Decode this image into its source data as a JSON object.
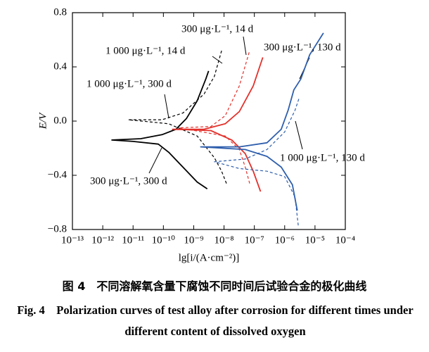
{
  "chart_data": {
    "type": "line",
    "xlabel": "lg[i/(A·cm⁻²)]",
    "ylabel": "E/V",
    "xlog": true,
    "xlim": [
      1e-13,
      0.0001
    ],
    "xticks": [
      {
        "value": 1e-13,
        "label": "10⁻¹³"
      },
      {
        "value": 1e-12,
        "label": "10⁻¹²"
      },
      {
        "value": 1e-11,
        "label": "10⁻¹¹"
      },
      {
        "value": 1e-10,
        "label": "10⁻¹⁰"
      },
      {
        "value": 1e-09,
        "label": "10⁻⁹"
      },
      {
        "value": 1e-08,
        "label": "10⁻⁸"
      },
      {
        "value": 1e-07,
        "label": "10⁻⁷"
      },
      {
        "value": 1e-06,
        "label": "10⁻⁶"
      },
      {
        "value": 1e-05,
        "label": "10⁻⁵"
      },
      {
        "value": 0.0001,
        "label": "10⁻⁴"
      }
    ],
    "ylim": [
      -0.8,
      0.8
    ],
    "yticks": [
      {
        "value": -0.8,
        "label": "−0.8"
      },
      {
        "value": -0.4,
        "label": "−0.4"
      },
      {
        "value": 0,
        "label": "0.0"
      },
      0.4,
      0.8
    ],
    "series": [
      {
        "name": "300 μg·L⁻¹, 300 d",
        "color": "#000000",
        "style": "solid",
        "x": [
          2.8e-09,
          1.3e-09,
          4.4e-10,
          1.5e-10,
          6.8e-11,
          1e-11,
          2e-12,
          1.8e-11,
          9e-11,
          2.6e-10,
          5.8e-10,
          1.3e-09,
          2.5e-09,
          3.1e-09
        ],
        "values": [
          -0.5,
          -0.45,
          -0.34,
          -0.23,
          -0.17,
          -0.15,
          -0.14,
          -0.13,
          -0.1,
          -0.06,
          0.02,
          0.15,
          0.31,
          0.37
        ]
      },
      {
        "name": "1 000 μg·L⁻¹, 300 d",
        "color": "#000000",
        "style": "dashed",
        "x": [
          1.2e-08,
          8.3e-09,
          4.8e-09,
          1.3e-09,
          1.5e-10,
          7e-12,
          9e-11,
          4.4e-10,
          2.2e-09,
          4.8e-09,
          8.3e-09
        ],
        "values": [
          -0.46,
          -0.37,
          -0.27,
          -0.11,
          -0.02,
          0.01,
          0.01,
          0.06,
          0.2,
          0.33,
          0.52
        ]
      },
      {
        "name": "300 μg·L⁻¹, 14 d",
        "color": "#e3302a",
        "style": "solid",
        "x": [
          1.6e-07,
          9.2e-08,
          5e-08,
          1.8e-08,
          3.7e-09,
          2e-10,
          2.2e-09,
          1.1e-08,
          3.2e-08,
          9.2e-08,
          1.9e-07
        ],
        "values": [
          -0.52,
          -0.37,
          -0.24,
          -0.14,
          -0.07,
          -0.06,
          -0.06,
          -0.02,
          0.07,
          0.26,
          0.47
        ]
      },
      {
        "name": "1 000 μg·L⁻¹, 14 d",
        "color": "#e3302a",
        "style": "dashed",
        "x": [
          7e-08,
          5e-08,
          3.2e-08,
          1.1e-08,
          3.3e-10,
          3.7e-09,
          1.1e-08,
          3.2e-08,
          7e-08
        ],
        "values": [
          -0.46,
          -0.34,
          -0.21,
          -0.11,
          -0.05,
          -0.04,
          0.04,
          0.26,
          0.52
        ]
      },
      {
        "name": "300 μg·L⁻¹, 130 d",
        "color": "#2f5fad",
        "style": "solid",
        "x": [
          2.6e-06,
          1.8e-06,
          7.7e-07,
          2.6e-07,
          5e-08,
          1.7e-09,
          3.2e-08,
          2.6e-07,
          7.7e-07,
          1.3e-06,
          2e-06,
          3.4e-06,
          6.7e-06,
          1.9e-05
        ],
        "values": [
          -0.66,
          -0.47,
          -0.34,
          -0.26,
          -0.21,
          -0.19,
          -0.19,
          -0.16,
          -0.06,
          0.08,
          0.23,
          0.31,
          0.49,
          0.65
        ]
      },
      {
        "name": "1 000 μg·L⁻¹, 130 d",
        "color": "#2f5fad",
        "style": "dashed",
        "x": [
          2.8e-06,
          2.2e-06,
          1e-06,
          2.6e-07,
          3.2e-08,
          4.8e-09,
          5e-08,
          2.6e-07,
          1e-06,
          2.2e-06,
          3e-06
        ],
        "values": [
          -0.77,
          -0.56,
          -0.41,
          -0.37,
          -0.35,
          -0.3,
          -0.28,
          -0.21,
          -0.08,
          0.08,
          0.17
        ]
      }
    ]
  },
  "caption": {
    "zh": "图 4　不同溶解氧含量下腐蚀不同时间后试验合金的极化曲线",
    "en": "Fig. 4　Polarization curves of test alloy after corrosion for different times under different content of dissolved oxygen"
  }
}
